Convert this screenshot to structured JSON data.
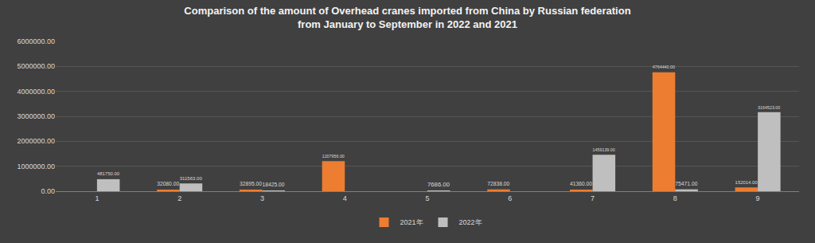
{
  "chart_data": {
    "type": "bar",
    "title": "Comparison of the amount of Overhead cranes imported from China by Russian federation from January to September in 2022 and 2021",
    "categories": [
      "1",
      "2",
      "3",
      "4",
      "5",
      "6",
      "7",
      "8",
      "9"
    ],
    "series": [
      {
        "name": "2021年",
        "color": "#ed7d31",
        "values": [
          null,
          32080,
          32895,
          1207956,
          null,
          72838,
          41360,
          4764440,
          152014
        ],
        "value_labels": [
          null,
          "32080.00",
          "32895.00",
          "1207956.00",
          null,
          "72838.00",
          "41360.00",
          "4764440.00",
          "152014.00"
        ]
      },
      {
        "name": "2022年",
        "color": "#bfbfbf",
        "values": [
          481750,
          311563,
          18425,
          null,
          7686,
          null,
          1459139,
          75471,
          3164523
        ],
        "value_labels": [
          "481750.00",
          "311563.00",
          "18425.00",
          null,
          "7686.00",
          null,
          "1459139.00",
          "75471.00",
          "3164523.00"
        ]
      }
    ],
    "ylim": [
      0,
      6000000
    ],
    "yticks": [
      {
        "value": 0,
        "label": "0.00"
      },
      {
        "value": 1000000,
        "label": "1000000.00"
      },
      {
        "value": 2000000,
        "label": "2000000.00"
      },
      {
        "value": 3000000,
        "label": "3000000.00"
      },
      {
        "value": 4000000,
        "label": "4000000.00"
      },
      {
        "value": 5000000,
        "label": "5000000.00"
      },
      {
        "value": 6000000,
        "label": "6000000.00"
      }
    ],
    "grid": true,
    "legend": "bottom",
    "data_labels": true
  }
}
